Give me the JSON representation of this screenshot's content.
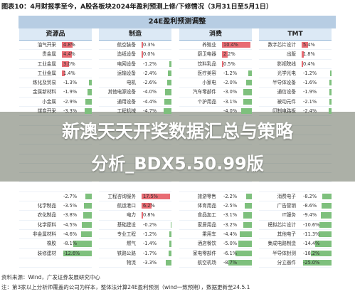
{
  "header": {
    "title": "图表10：4月财报季至今，A股各板块2024年盈利预测上修/下修情况（3月31日至5月1日）"
  },
  "table": {
    "title": "24E盈利预测调整",
    "panels": [
      {
        "name": "资源品",
        "rows": [
          {
            "label": "油气开采",
            "value": "4.8%"
          },
          {
            "label": "贵金属",
            "value": "4.4%"
          },
          {
            "label": "工业金属",
            "value": "3.0%"
          },
          {
            "label": "工业金属",
            "value": "1.4%"
          },
          {
            "label": "炼化及贸易",
            "value": "-1.3%"
          },
          {
            "label": "金属新材料",
            "value": "-1.9%"
          },
          {
            "label": "小金属",
            "value": "-2.9%"
          },
          {
            "label": "煤炭开采",
            "value": "-3.3%"
          },
          {
            "label": "",
            "value": ""
          },
          {
            "label": "",
            "value": ""
          },
          {
            "label": "",
            "value": ""
          },
          {
            "label": "",
            "value": ""
          },
          {
            "label": "",
            "value": ""
          },
          {
            "label": "",
            "value": ""
          },
          {
            "label": "",
            "value": ""
          },
          {
            "label": "",
            "value": ""
          },
          {
            "label": "",
            "value": "-2.7%"
          },
          {
            "label": "化学制品",
            "value": "-3.5%"
          },
          {
            "label": "农化制品",
            "value": "-3.8%"
          },
          {
            "label": "化学原料",
            "value": "-4.5%"
          },
          {
            "label": "非金属材料",
            "value": "-4.6%"
          },
          {
            "label": "橡胶",
            "value": "-8.1%"
          },
          {
            "label": "装修建材",
            "value": "-12.6%"
          },
          {
            "label": "",
            "value": ""
          }
        ]
      },
      {
        "name": "制造",
        "rows": [
          {
            "label": "航空装备",
            "value": "0.3%"
          },
          {
            "label": "造纸设备",
            "value": "0.0%"
          },
          {
            "label": "电网设备",
            "value": "-1.2%"
          },
          {
            "label": "运输设备",
            "value": "-2.4%"
          },
          {
            "label": "电机",
            "value": "-2.6%"
          },
          {
            "label": "其他电源设备",
            "value": "-4.0%"
          },
          {
            "label": "通用设备",
            "value": "-4.4%"
          },
          {
            "label": "工程机械",
            "value": "-4.7%"
          },
          {
            "label": "",
            "value": ""
          },
          {
            "label": "",
            "value": ""
          },
          {
            "label": "",
            "value": ""
          },
          {
            "label": "",
            "value": ""
          },
          {
            "label": "",
            "value": ""
          },
          {
            "label": "",
            "value": ""
          },
          {
            "label": "",
            "value": ""
          },
          {
            "label": "",
            "value": ""
          },
          {
            "label": "工程咨询服务",
            "value": "17.5%"
          },
          {
            "label": "航运港口",
            "value": "6.2%"
          },
          {
            "label": "电力",
            "value": "0.8%"
          },
          {
            "label": "基础建设",
            "value": "-0.2%"
          },
          {
            "label": "专业工程",
            "value": "-1.2%"
          },
          {
            "label": "燃气",
            "value": "-1.4%"
          },
          {
            "label": "铁路公路",
            "value": "-1.7%"
          },
          {
            "label": "物流",
            "value": "-3.3%"
          }
        ]
      },
      {
        "name": "消费",
        "rows": [
          {
            "label": "养殖业",
            "value": "10.4%"
          },
          {
            "label": "厨卫电器",
            "value": "2.2%"
          },
          {
            "label": "饮料乳品",
            "value": "0.5%"
          },
          {
            "label": "医疗美容",
            "value": "-1.2%"
          },
          {
            "label": "小家电",
            "value": "-2.0%"
          },
          {
            "label": "汽车零部件",
            "value": "-3.0%"
          },
          {
            "label": "个护用品",
            "value": "-3.1%"
          },
          {
            "label": "",
            "value": "-4.0%"
          },
          {
            "label": "",
            "value": ""
          },
          {
            "label": "",
            "value": ""
          },
          {
            "label": "",
            "value": ""
          },
          {
            "label": "",
            "value": ""
          },
          {
            "label": "",
            "value": ""
          },
          {
            "label": "",
            "value": ""
          },
          {
            "label": "",
            "value": ""
          },
          {
            "label": "",
            "value": ""
          },
          {
            "label": "旅游零售",
            "value": "-2.2%"
          },
          {
            "label": "体育用品",
            "value": "-2.5%"
          },
          {
            "label": "食品加工",
            "value": "-3.1%"
          },
          {
            "label": "家居用品",
            "value": "-3.2%"
          },
          {
            "label": "乘用车",
            "value": "-4.4%"
          },
          {
            "label": "酒店餐饮",
            "value": "-5.0%"
          },
          {
            "label": "家电零部件",
            "value": "-6.1%"
          },
          {
            "label": "航空机场",
            "value": "-8.7%"
          }
        ]
      },
      {
        "name": "TMT",
        "rows": [
          {
            "label": "数字芯片设计",
            "value": "5.4%"
          },
          {
            "label": "出版",
            "value": "1.8%"
          },
          {
            "label": "影视院线",
            "value": "0.4%"
          },
          {
            "label": "光学光电",
            "value": "-1.2%"
          },
          {
            "label": "半导体设备",
            "value": "-1.6%"
          },
          {
            "label": "通信设备",
            "value": "-1.9%"
          },
          {
            "label": "被动元件",
            "value": "-2.1%"
          },
          {
            "label": "印制电路板",
            "value": "-2.4%"
          },
          {
            "label": "",
            "value": ""
          },
          {
            "label": "",
            "value": ""
          },
          {
            "label": "",
            "value": ""
          },
          {
            "label": "",
            "value": ""
          },
          {
            "label": "",
            "value": ""
          },
          {
            "label": "",
            "value": ""
          },
          {
            "label": "",
            "value": ""
          },
          {
            "label": "",
            "value": ""
          },
          {
            "label": "消费电子",
            "value": "-8.2%"
          },
          {
            "label": "广告营销",
            "value": "-8.6%"
          },
          {
            "label": "IT服务",
            "value": "-9.4%"
          },
          {
            "label": "模拟芯片设计",
            "value": "-10.6%"
          },
          {
            "label": "其他电子",
            "value": "-11.3%"
          },
          {
            "label": "集成电路制造",
            "value": "-14.4%"
          },
          {
            "label": "半导体封测",
            "value": "-18.2%"
          },
          {
            "label": "分立器件",
            "value": "-25.0%"
          }
        ]
      }
    ]
  },
  "banner": {
    "line1": "新澳天天开奖数据汇总与策略",
    "line2": "分析_BDX5.50.99版"
  },
  "footnotes": {
    "source": "资料来源：Wind，广发证券发展研究中心",
    "note": "注：第3家以上分析师覆盖的公司为样本，整体法计算24E盈利预测（wind一致预期），数据更新至24.5.1"
  },
  "colors": {
    "positive_bar": "#e86b73",
    "negative_bar": "#7ec07d",
    "header_bg": "#b7cde3",
    "panel_header_bg": "#dce9f5"
  }
}
